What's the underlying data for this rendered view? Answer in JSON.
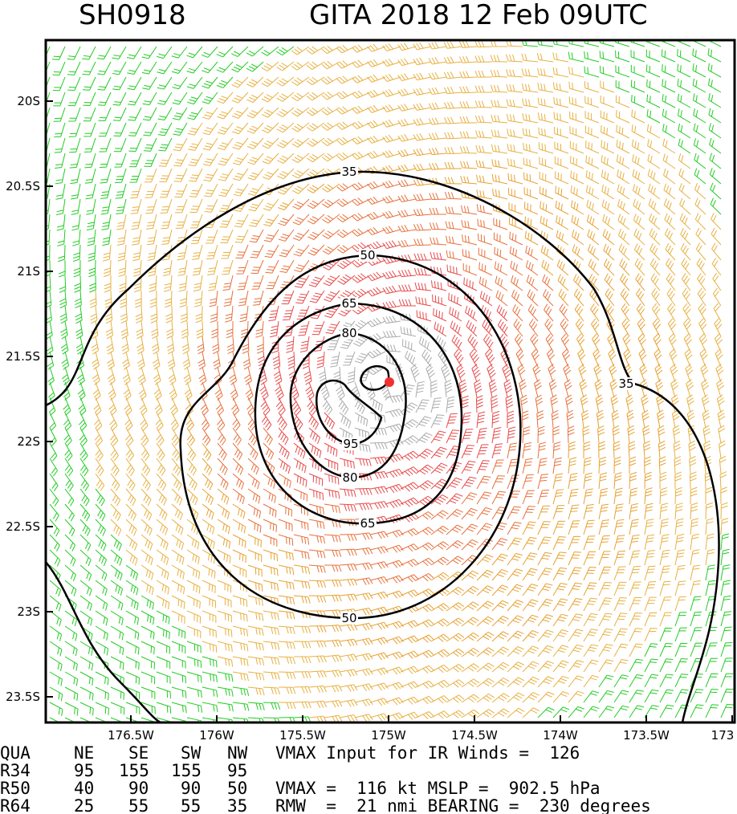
{
  "header": {
    "left": "SH0918",
    "right": "GITA 2018 12 Feb 09UTC"
  },
  "map": {
    "lat_ticks": [
      "20S",
      "20.5S",
      "21S",
      "21.5S",
      "22S",
      "22.5S",
      "23S",
      "23.5S"
    ],
    "lon_ticks": [
      "176.5W",
      "176W",
      "175.5W",
      "175W",
      "174.5W",
      "174W",
      "173.5W",
      "173"
    ],
    "contours": [
      35,
      50,
      65,
      80,
      95
    ]
  },
  "table": {
    "header": [
      "QUA",
      "NE",
      "SE",
      "SW",
      "NW"
    ],
    "rows": [
      [
        "R34",
        95,
        155,
        155,
        95
      ],
      [
        "R50",
        40,
        90,
        90,
        50
      ],
      [
        "R64",
        25,
        55,
        55,
        35
      ]
    ]
  },
  "notes": [
    "VMAX Input for IR Winds =  126",
    "VMAX =  116 kt MSLP =  902.5 hPa",
    "RMW  =  21 nmi BEARING =  230 degrees"
  ]
}
